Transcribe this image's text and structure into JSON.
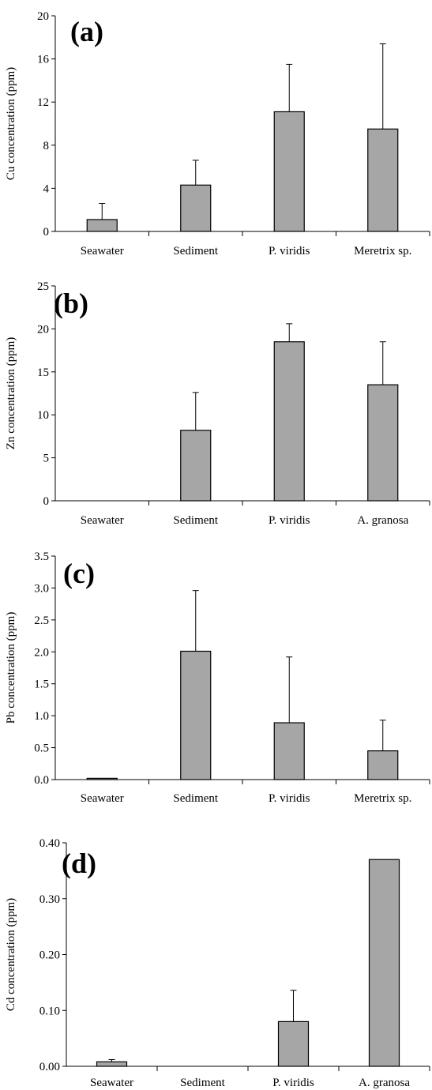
{
  "chart_data": [
    {
      "type": "bar",
      "panel_label": "(a)",
      "ylabel": "Cu concentration (ppm)",
      "ylim": [
        0,
        20
      ],
      "yticks": [
        "0",
        "4",
        "8",
        "12",
        "16",
        "20"
      ],
      "tick_values": [
        0,
        4,
        8,
        12,
        16,
        20
      ],
      "categories": [
        "Seawater",
        "Sediment",
        "P. viridis",
        "Meretrix sp."
      ],
      "values": [
        1.1,
        4.3,
        11.1,
        9.5
      ],
      "errors": [
        1.5,
        2.3,
        4.4,
        7.9
      ],
      "bar_color": "#a6a6a6",
      "grid": false
    },
    {
      "type": "bar",
      "panel_label": "(b)",
      "ylabel": "Zn concentration (ppm)",
      "ylim": [
        0,
        25
      ],
      "yticks": [
        "0",
        "5",
        "10",
        "15",
        "20",
        "25"
      ],
      "tick_values": [
        0,
        5,
        10,
        15,
        20,
        25
      ],
      "categories": [
        "Seawater",
        "Sediment",
        "P. viridis",
        "A. granosa"
      ],
      "values": [
        0,
        8.2,
        18.5,
        13.5
      ],
      "errors": [
        0,
        4.4,
        2.1,
        5.0
      ],
      "bar_color": "#a6a6a6",
      "grid": false
    },
    {
      "type": "bar",
      "panel_label": "(c)",
      "ylabel": "Pb concentration (ppm)",
      "ylim": [
        0,
        3.5
      ],
      "yticks": [
        "0.0",
        "0.5",
        "1.0",
        "1.5",
        "2.0",
        "2.5",
        "3.0",
        "3.5"
      ],
      "tick_values": [
        0,
        0.5,
        1.0,
        1.5,
        2.0,
        2.5,
        3.0,
        3.5
      ],
      "categories": [
        "Seawater",
        "Sediment",
        "P. viridis",
        "Meretrix sp."
      ],
      "values": [
        0.02,
        2.01,
        0.89,
        0.45
      ],
      "errors": [
        0,
        0.95,
        1.03,
        0.48
      ],
      "bar_color": "#a6a6a6",
      "grid": false
    },
    {
      "type": "bar",
      "panel_label": "(d)",
      "ylabel": "Cd concentration (ppm)",
      "ylim": [
        0,
        0.4
      ],
      "yticks": [
        "0.00",
        "0.10",
        "0.20",
        "0.30",
        "0.40"
      ],
      "tick_values": [
        0,
        0.1,
        0.2,
        0.3,
        0.4
      ],
      "categories": [
        "Seawater",
        "Sediment",
        "P. viridis",
        "A. granosa"
      ],
      "values": [
        0.008,
        0,
        0.08,
        0.37
      ],
      "errors": [
        0.004,
        0,
        0.056,
        0
      ],
      "bar_color": "#a6a6a6",
      "grid": false
    }
  ]
}
